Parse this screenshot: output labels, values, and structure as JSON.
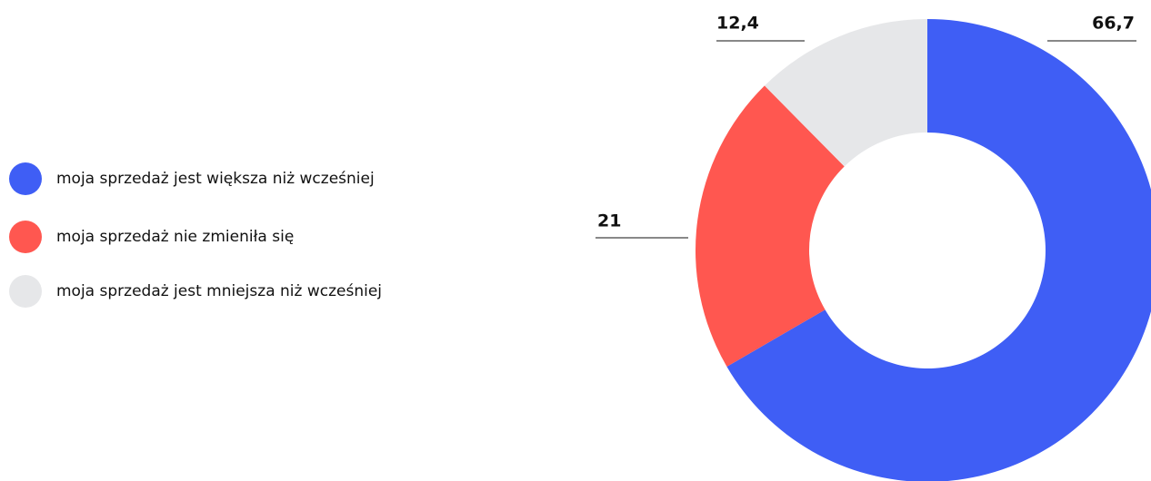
{
  "chart_data": {
    "type": "pie",
    "donut": true,
    "categories": [
      "moja sprzedaż jest większa niż wcześniej",
      "moja sprzedaż nie zmieniła się",
      "moja sprzedaż jest mniejsza niż wcześniej"
    ],
    "values": [
      66.7,
      21,
      12.4
    ],
    "value_labels": [
      "66,7",
      "21",
      "12,4"
    ],
    "colors": [
      "#3f5ef5",
      "#ff5750",
      "#e6e7e9"
    ]
  }
}
